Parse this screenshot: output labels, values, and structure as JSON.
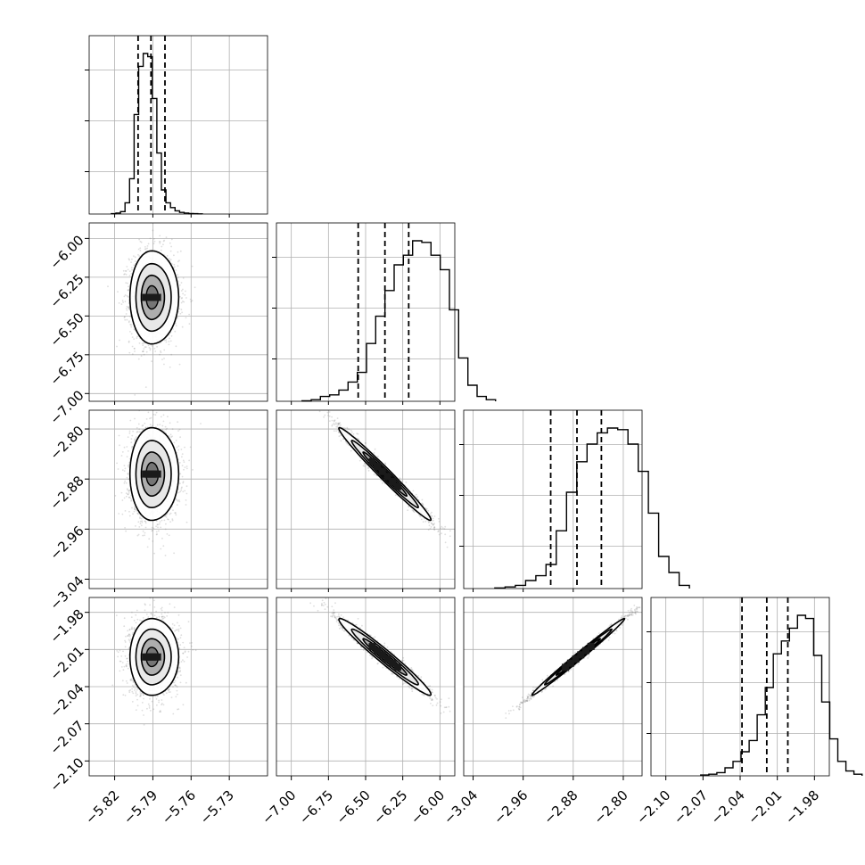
{
  "chart_data": {
    "type": "corner",
    "params": [
      {
        "xlim": [
          -5.84,
          -5.7
        ],
        "ylim": [
          -7.05,
          -5.9
        ],
        "ticks": [
          -5.82,
          -5.79,
          -5.76,
          -5.73
        ],
        "tick_labels": [
          "−5.82",
          "−5.79",
          "−5.76",
          "−5.73"
        ],
        "center": -5.792,
        "spread": 0.0085,
        "quantiles": [
          -5.8016,
          -5.7915,
          -5.7805
        ],
        "hist": [
          0.002,
          0.006,
          0.015,
          0.07,
          0.22,
          0.62,
          0.92,
          1.0,
          0.98,
          0.72,
          0.38,
          0.15,
          0.07,
          0.04,
          0.02,
          0.01,
          0.006,
          0.003,
          0.002,
          0.001
        ]
      },
      {
        "xlim": [
          -7.1,
          -5.9
        ],
        "ylim": [
          -7.05,
          -5.9
        ],
        "ticks": [
          -7.0,
          -6.75,
          -6.5,
          -6.25,
          -6.0
        ],
        "tick_labels": [
          "−7.00",
          "−6.75",
          "−6.50",
          "−6.25",
          "−6.00"
        ],
        "yticks": [
          -6.0,
          -6.25,
          -6.5,
          -6.75,
          -7.0
        ],
        "ytick_labels": [
          "−6.00",
          "−6.25",
          "−6.50",
          "−6.75",
          "−7.00"
        ],
        "center": -6.37,
        "spread": 0.155,
        "quantiles": [
          -6.55,
          -6.37,
          -6.21
        ],
        "hist": [
          0.003,
          0.01,
          0.03,
          0.04,
          0.07,
          0.12,
          0.18,
          0.36,
          0.53,
          0.69,
          0.85,
          0.91,
          1.0,
          0.99,
          0.91,
          0.82,
          0.57,
          0.27,
          0.1,
          0.03,
          0.01
        ]
      },
      {
        "xlim": [
          -3.055,
          -2.77
        ],
        "ylim": [
          -3.055,
          -2.77
        ],
        "ticks": [
          -3.04,
          -2.96,
          -2.88,
          -2.8
        ],
        "tick_labels": [
          "−3.04",
          "−2.96",
          "−2.88",
          "−2.80"
        ],
        "yticks": [
          -2.8,
          -2.88,
          -2.96,
          -3.04
        ],
        "ytick_labels": [
          "−2.80",
          "−2.88",
          "−2.96",
          "−3.04"
        ],
        "center": -2.872,
        "spread": 0.037,
        "quantiles": [
          -2.916,
          -2.874,
          -2.835
        ],
        "hist": [
          0.004,
          0.01,
          0.02,
          0.05,
          0.08,
          0.15,
          0.36,
          0.6,
          0.79,
          0.9,
          0.97,
          1.0,
          0.99,
          0.9,
          0.73,
          0.47,
          0.2,
          0.1,
          0.02
        ]
      },
      {
        "xlim": [
          -2.112,
          -1.968
        ],
        "ylim": [
          -2.112,
          -1.968
        ],
        "ticks": [
          -2.1,
          -2.07,
          -2.04,
          -2.01,
          -1.98
        ],
        "tick_labels": [
          "−2.10",
          "−2.07",
          "−2.04",
          "−2.01",
          "−1.98"
        ],
        "yticks": [
          -1.98,
          -2.01,
          -2.04,
          -2.07,
          -2.1
        ],
        "ytick_labels": [
          "−1.98",
          "−2.01",
          "−2.04",
          "−2.07",
          "−2.10"
        ],
        "center": -2.016,
        "spread": 0.0155,
        "quantiles": [
          -2.0385,
          -2.0185,
          -2.0015
        ],
        "hist": [
          0.005,
          0.01,
          0.02,
          0.05,
          0.09,
          0.15,
          0.22,
          0.38,
          0.55,
          0.76,
          0.84,
          0.92,
          1.0,
          0.98,
          0.75,
          0.46,
          0.23,
          0.09,
          0.03,
          0.01
        ]
      }
    ],
    "scatter": [
      {
        "row": 1,
        "col": 0,
        "xmean": -5.791,
        "xsd": 0.0085,
        "ymean": -6.38,
        "ysd": 0.15,
        "rho": 0.0
      },
      {
        "row": 2,
        "col": 0,
        "xmean": -5.791,
        "xsd": 0.0085,
        "ymean": -2.872,
        "ysd": 0.037,
        "rho": 0.0
      },
      {
        "row": 3,
        "col": 0,
        "xmean": -5.791,
        "xsd": 0.0085,
        "ymean": -2.016,
        "ysd": 0.0155,
        "rho": 0.0
      },
      {
        "row": 2,
        "col": 1,
        "xmean": -6.37,
        "xsd": 0.155,
        "ymean": -2.872,
        "ysd": 0.037,
        "rho": -0.985
      },
      {
        "row": 3,
        "col": 1,
        "xmean": -6.37,
        "xsd": 0.155,
        "ymean": -2.016,
        "ysd": 0.0155,
        "rho": -0.975
      },
      {
        "row": 3,
        "col": 2,
        "xmean": -2.872,
        "xsd": 0.037,
        "ymean": -2.016,
        "ysd": 0.0155,
        "rho": 0.993
      }
    ]
  }
}
